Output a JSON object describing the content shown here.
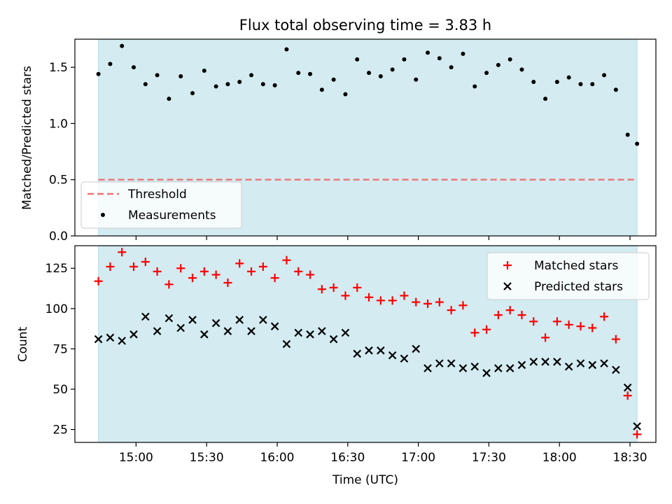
{
  "chart_data": [
    {
      "type": "scatter",
      "title": "Flux total observing time = 3.83 h",
      "ylabel": "Matched/Predicted stars",
      "xlabel": "",
      "ylim": [
        0,
        1.75
      ],
      "xlim": [
        "14:34",
        "18:41"
      ],
      "yticks": [
        0.0,
        0.5,
        1.0,
        1.5
      ],
      "ytick_labels": [
        "0.0",
        "0.5",
        "1.0",
        "1.5"
      ],
      "grid": false,
      "legend_placement": "lower-left",
      "shaded_interval": [
        "14:44",
        "18:33"
      ],
      "shade_color": "#d3ebf1",
      "threshold": {
        "name": "Threshold",
        "value": 0.5,
        "color": "#ee7373",
        "style": "dashed"
      },
      "series": [
        {
          "name": "Measurements",
          "color": "#000000",
          "marker": "dot",
          "x": [
            "14:44",
            "14:49",
            "14:54",
            "14:59",
            "15:04",
            "15:09",
            "15:14",
            "15:19",
            "15:24",
            "15:29",
            "15:34",
            "15:39",
            "15:44",
            "15:49",
            "15:54",
            "15:59",
            "16:04",
            "16:09",
            "16:14",
            "16:19",
            "16:24",
            "16:29",
            "16:34",
            "16:39",
            "16:44",
            "16:49",
            "16:54",
            "16:59",
            "17:04",
            "17:09",
            "17:14",
            "17:19",
            "17:24",
            "17:29",
            "17:34",
            "17:39",
            "17:44",
            "17:49",
            "17:54",
            "17:59",
            "18:04",
            "18:09",
            "18:14",
            "18:19",
            "18:24",
            "18:29",
            "18:33"
          ],
          "y": [
            1.44,
            1.53,
            1.69,
            1.5,
            1.35,
            1.43,
            1.22,
            1.42,
            1.27,
            1.47,
            1.33,
            1.35,
            1.37,
            1.43,
            1.35,
            1.34,
            1.66,
            1.45,
            1.44,
            1.3,
            1.39,
            1.26,
            1.57,
            1.45,
            1.42,
            1.48,
            1.57,
            1.39,
            1.63,
            1.58,
            1.5,
            1.62,
            1.33,
            1.45,
            1.52,
            1.57,
            1.48,
            1.37,
            1.22,
            1.37,
            1.41,
            1.35,
            1.35,
            1.43,
            1.3,
            0.9,
            0.82
          ]
        }
      ]
    },
    {
      "type": "scatter",
      "title": "",
      "ylabel": "Count",
      "xlabel": "Time (UTC)",
      "ylim": [
        17,
        139
      ],
      "xlim": [
        "14:34",
        "18:41"
      ],
      "yticks": [
        25,
        50,
        75,
        100,
        125
      ],
      "ytick_labels": [
        "25",
        "50",
        "75",
        "100",
        "125"
      ],
      "xticks": [
        "15:00",
        "15:30",
        "16:00",
        "16:30",
        "17:00",
        "17:30",
        "18:00",
        "18:30"
      ],
      "xtick_labels": [
        "15:00",
        "15:30",
        "16:00",
        "16:30",
        "17:00",
        "17:30",
        "18:00",
        "18:30"
      ],
      "grid": false,
      "legend_placement": "top-right",
      "shaded_interval": [
        "14:44",
        "18:33"
      ],
      "shade_color": "#d3ebf1",
      "x": [
        "14:44",
        "14:49",
        "14:54",
        "14:59",
        "15:04",
        "15:09",
        "15:14",
        "15:19",
        "15:24",
        "15:29",
        "15:34",
        "15:39",
        "15:44",
        "15:49",
        "15:54",
        "15:59",
        "16:04",
        "16:09",
        "16:14",
        "16:19",
        "16:24",
        "16:29",
        "16:34",
        "16:39",
        "16:44",
        "16:49",
        "16:54",
        "16:59",
        "17:04",
        "17:09",
        "17:14",
        "17:19",
        "17:24",
        "17:29",
        "17:34",
        "17:39",
        "17:44",
        "17:49",
        "17:54",
        "17:59",
        "18:04",
        "18:09",
        "18:14",
        "18:19",
        "18:24",
        "18:29",
        "18:33"
      ],
      "series": [
        {
          "name": "Matched stars",
          "color": "#ff0000",
          "marker": "plus",
          "values": [
            117,
            126,
            135,
            126,
            129,
            123,
            115,
            125,
            119,
            123,
            121,
            116,
            128,
            123,
            126,
            119,
            130,
            123,
            121,
            112,
            113,
            108,
            113,
            107,
            105,
            105,
            108,
            104,
            103,
            104,
            99,
            102,
            85,
            87,
            96,
            99,
            96,
            92,
            82,
            92,
            90,
            89,
            88,
            95,
            81,
            46,
            22
          ]
        },
        {
          "name": "Predicted stars",
          "color": "#000000",
          "marker": "x",
          "values": [
            81,
            82,
            80,
            84,
            95,
            86,
            94,
            88,
            93,
            84,
            91,
            86,
            93,
            86,
            93,
            89,
            78,
            85,
            84,
            86,
            81,
            85,
            72,
            74,
            74,
            71,
            69,
            75,
            63,
            66,
            66,
            63,
            64,
            60,
            63,
            63,
            65,
            67,
            67,
            67,
            64,
            66,
            65,
            66,
            62,
            51,
            27
          ]
        }
      ]
    }
  ]
}
